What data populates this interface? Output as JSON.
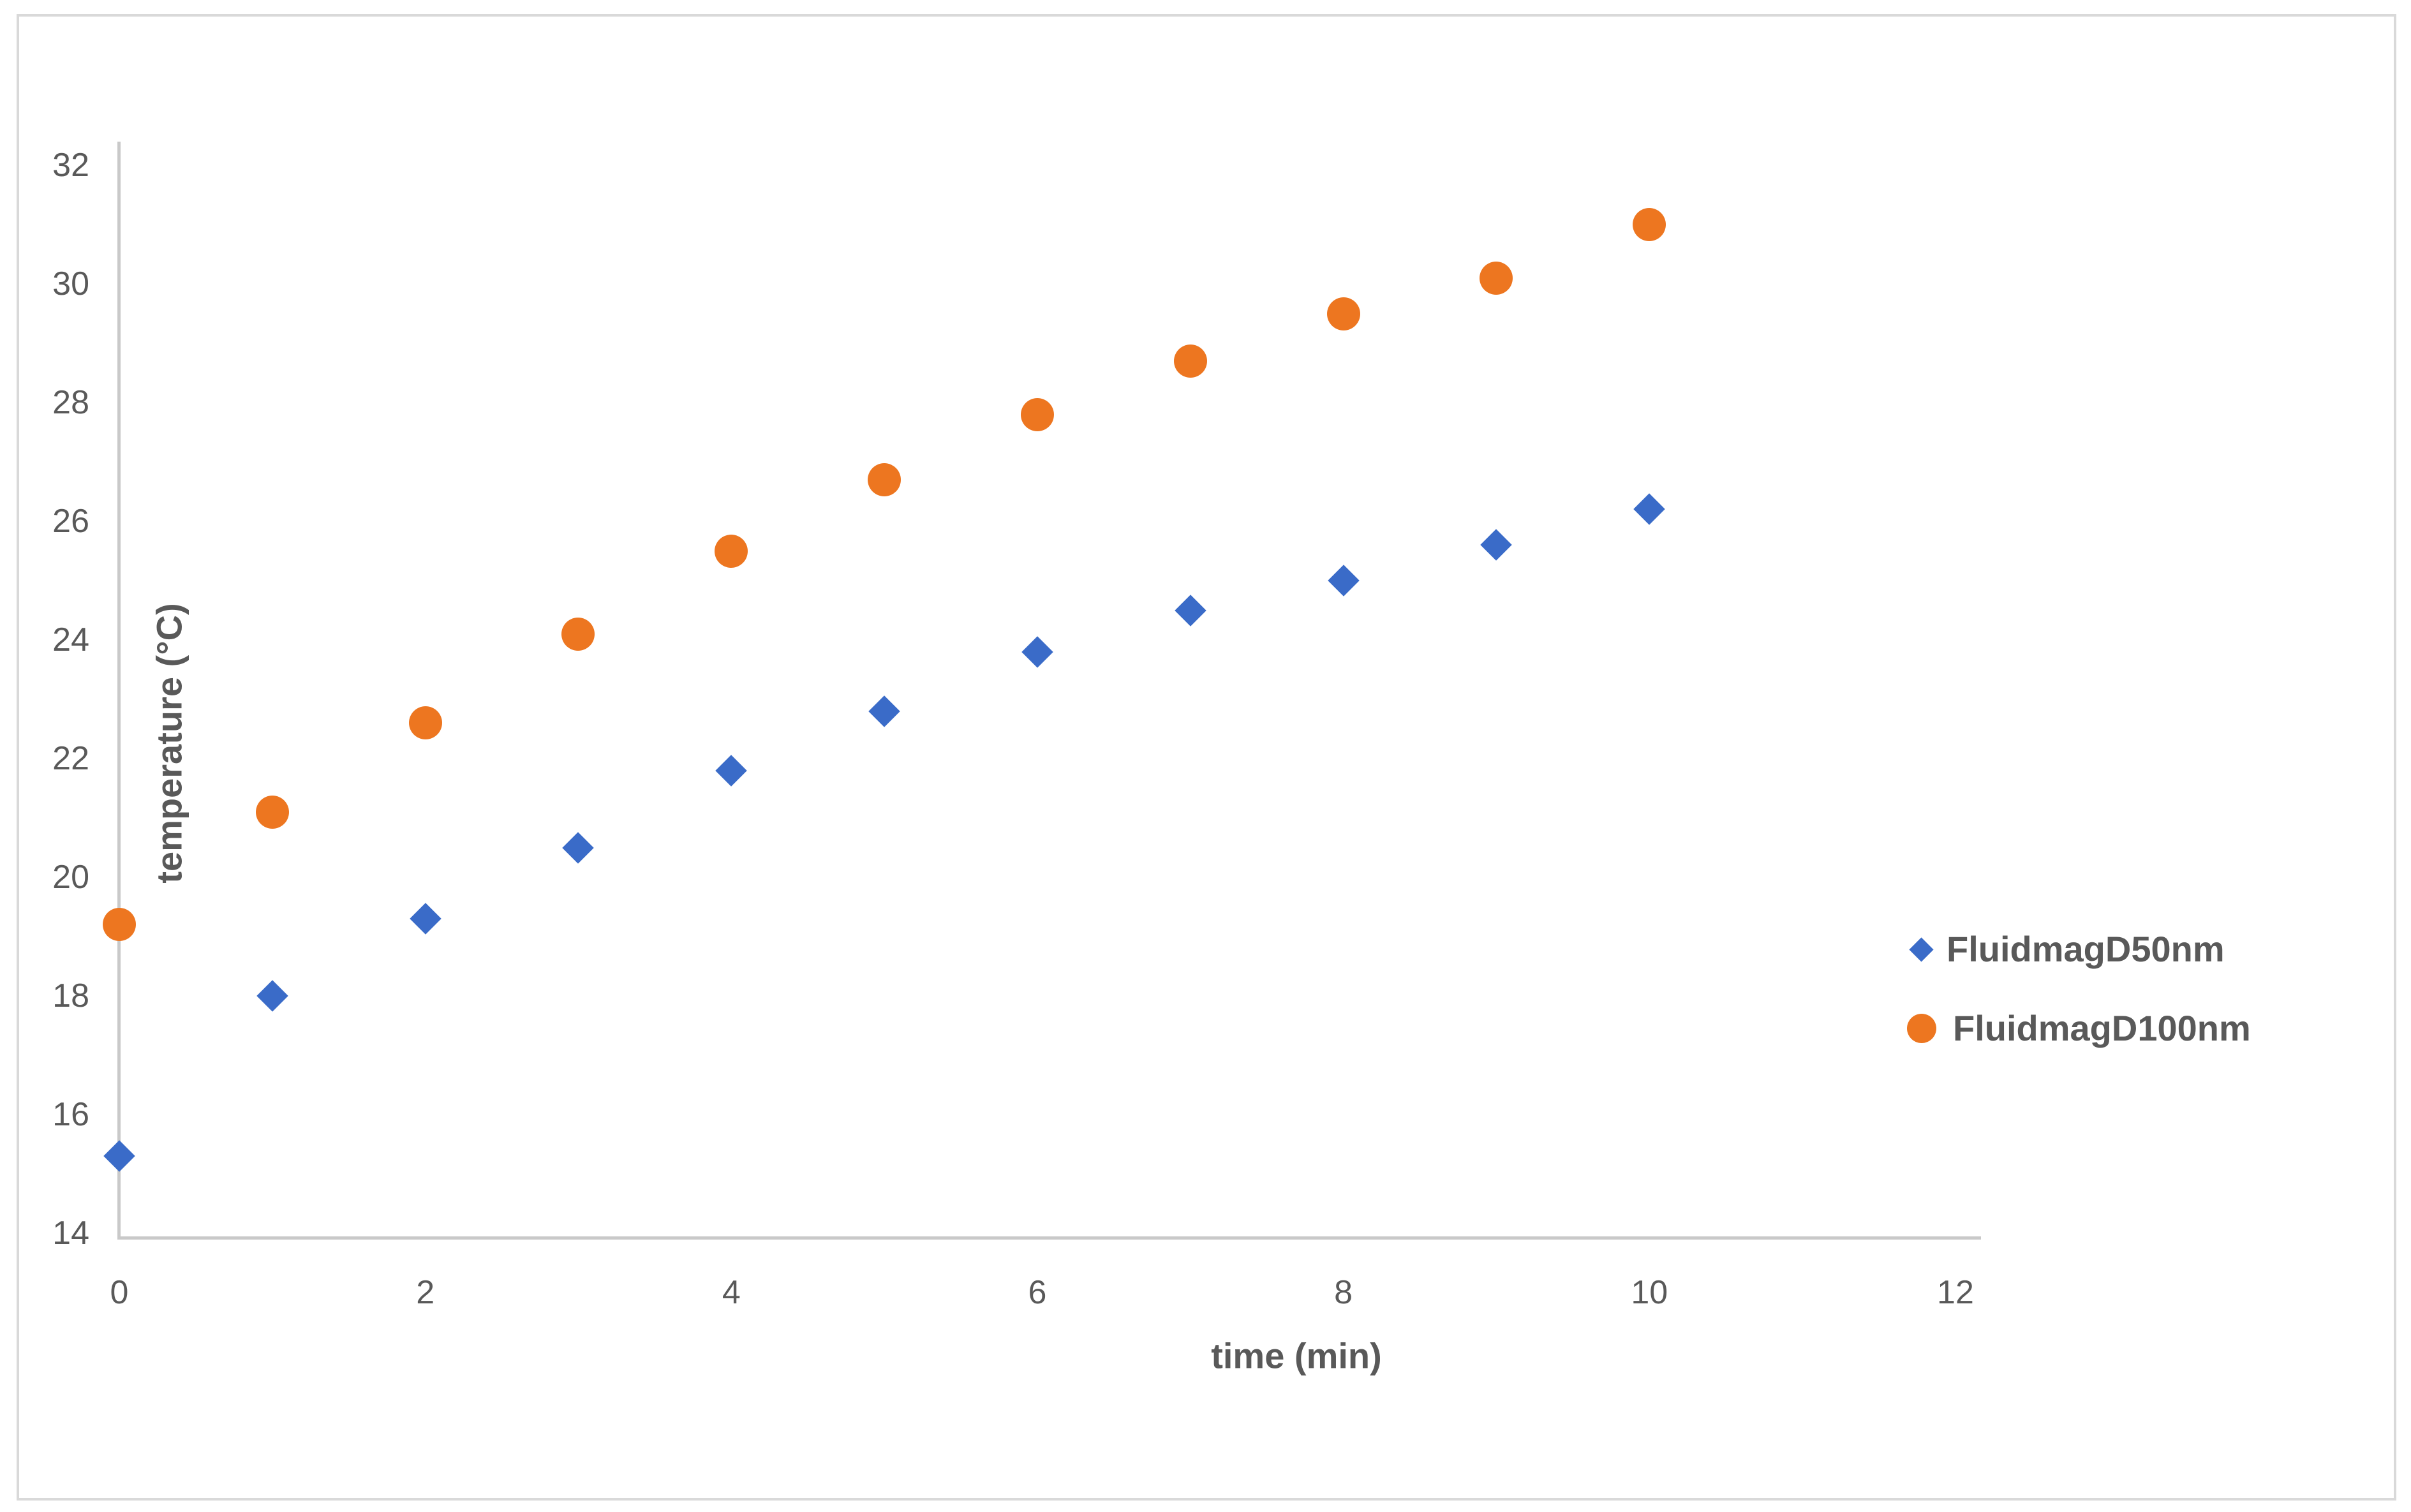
{
  "figure": {
    "background": "#ffffff",
    "border_color": "#d9d9d9"
  },
  "chart_data": {
    "type": "scatter",
    "title": "",
    "xlabel": "time (min)",
    "ylabel": "temperature (°C)",
    "x_ticks": [
      0,
      2,
      4,
      6,
      8,
      10,
      12
    ],
    "y_ticks": [
      32,
      30,
      28,
      26,
      24,
      22,
      20,
      18,
      16,
      14
    ],
    "xlim": [
      0,
      12.2
    ],
    "ylim": [
      14,
      32.5
    ],
    "grid": false,
    "legend_position": "right-middle",
    "axis_text_color": "#595959",
    "axis_line_color": "#c9c9c9",
    "x": [
      0,
      1,
      2,
      3,
      4,
      5,
      6,
      7,
      8,
      9,
      10
    ],
    "series": [
      {
        "name": "FluidmagD50nm",
        "marker": "diamond",
        "color": "#3a6bc8",
        "values": [
          15.3,
          18.0,
          19.3,
          20.5,
          21.8,
          22.8,
          23.8,
          24.5,
          25.0,
          25.6,
          26.2
        ]
      },
      {
        "name": "FluidmagD100nm",
        "marker": "circle",
        "color": "#ed7620",
        "values": [
          19.2,
          21.1,
          22.6,
          24.1,
          25.5,
          26.7,
          27.8,
          28.7,
          29.5,
          30.1,
          31.0
        ]
      }
    ]
  }
}
